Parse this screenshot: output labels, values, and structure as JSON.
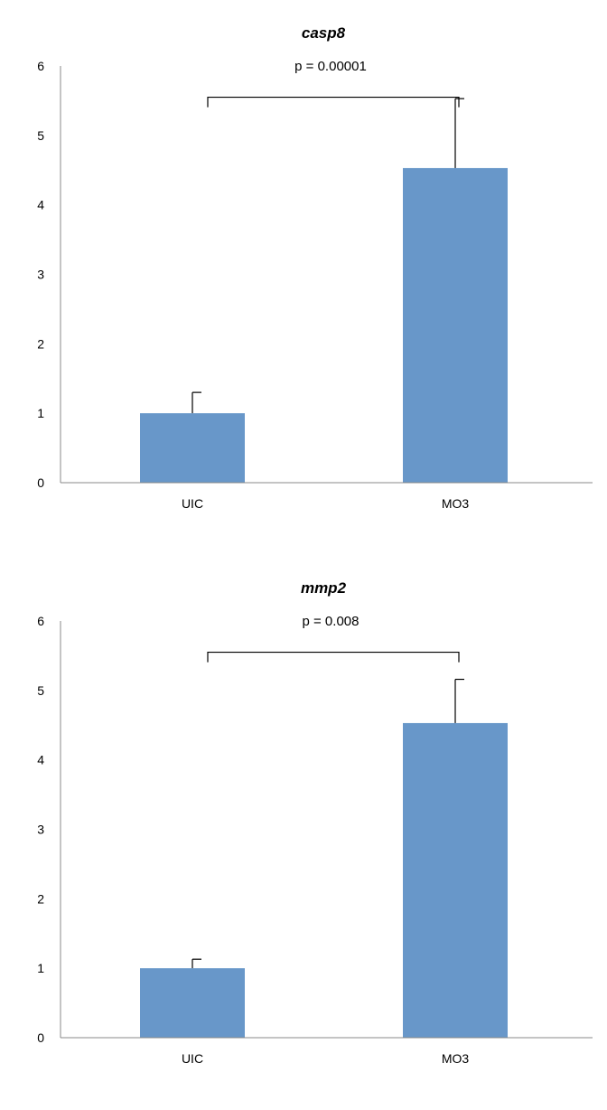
{
  "chart_data": [
    {
      "type": "bar",
      "title": "casp8",
      "categories": [
        "UIC",
        "MO3"
      ],
      "values": [
        1.0,
        4.53
      ],
      "error": [
        0.3,
        1.0
      ],
      "ylim": [
        0,
        6
      ],
      "yticks": [
        "0",
        "1",
        "2",
        "3",
        "4",
        "5",
        "6"
      ],
      "xlabel": "",
      "ylabel": "",
      "grid": false,
      "bar_color": "#6897c9",
      "annotation": {
        "text": "p = 0.00001",
        "bracket_y": 5.55
      }
    },
    {
      "type": "bar",
      "title": "mmp2",
      "categories": [
        "UIC",
        "MO3"
      ],
      "values": [
        1.0,
        4.53
      ],
      "error": [
        0.13,
        0.63
      ],
      "ylim": [
        0,
        6
      ],
      "yticks": [
        "0",
        "1",
        "2",
        "3",
        "4",
        "5",
        "6"
      ],
      "xlabel": "",
      "ylabel": "",
      "grid": false,
      "bar_color": "#6897c9",
      "annotation": {
        "text": "p = 0.008",
        "bracket_y": 5.55
      }
    }
  ]
}
